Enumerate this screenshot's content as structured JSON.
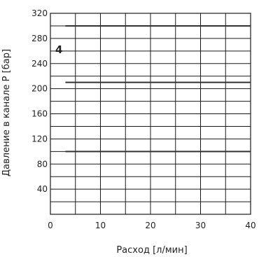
{
  "chart_data": {
    "type": "line",
    "panel_label": "4",
    "xlabel": "Расход [л/мин]",
    "ylabel": "Давление в канале P [бар]",
    "xlim": [
      0,
      40
    ],
    "ylim": [
      0,
      320
    ],
    "xticks": [
      0,
      10,
      20,
      30,
      40
    ],
    "yticks": [
      40,
      80,
      120,
      160,
      200,
      240,
      280,
      320
    ],
    "grid": true,
    "series": [
      {
        "x": [
          3,
          40
        ],
        "values": [
          100,
          100
        ]
      },
      {
        "x": [
          3,
          40
        ],
        "values": [
          210,
          210
        ]
      },
      {
        "x": [
          3,
          40
        ],
        "values": [
          300,
          300
        ]
      }
    ],
    "colors": {
      "series": "#333333",
      "grid": "#1a1a1a",
      "text": "#222222"
    }
  }
}
